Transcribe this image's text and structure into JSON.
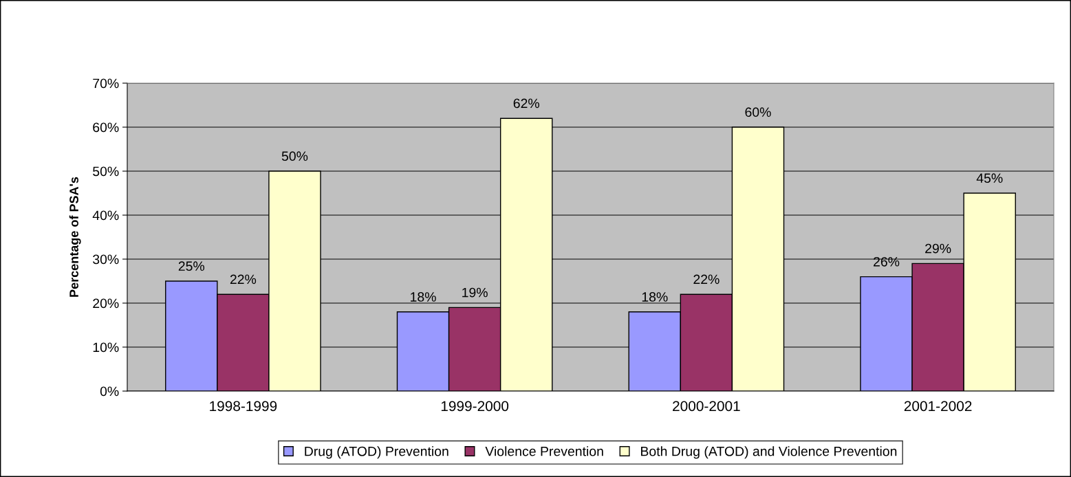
{
  "chart_data": {
    "type": "bar",
    "ylabel": "Percentage of PSA's",
    "categories": [
      "1998-1999",
      "1999-2000",
      "2000-2001",
      "2001-2002"
    ],
    "series": [
      {
        "name": "Drug (ATOD) Prevention",
        "color": "#9999ff",
        "values": [
          25,
          18,
          18,
          26
        ],
        "value_labels": [
          "25%",
          "18%",
          "18%",
          "26%"
        ]
      },
      {
        "name": "Violence Prevention",
        "color": "#993366",
        "values": [
          22,
          19,
          22,
          29
        ],
        "value_labels": [
          "22%",
          "19%",
          "22%",
          "29%"
        ]
      },
      {
        "name": "Both Drug (ATOD) and Violence Prevention",
        "color": "#ffffcc",
        "values": [
          50,
          62,
          60,
          45
        ],
        "value_labels": [
          "50%",
          "62%",
          "60%",
          "45%"
        ]
      }
    ],
    "ylim": [
      0,
      70
    ],
    "yticks": [
      {
        "value": 0,
        "label": "0%"
      },
      {
        "value": 10,
        "label": "10%"
      },
      {
        "value": 20,
        "label": "20%"
      },
      {
        "value": 30,
        "label": "30%"
      },
      {
        "value": 40,
        "label": "40%"
      },
      {
        "value": 50,
        "label": "50%"
      },
      {
        "value": 60,
        "label": "60%"
      },
      {
        "value": 70,
        "label": "70%"
      }
    ],
    "grid": "y",
    "legend": "bottom"
  }
}
